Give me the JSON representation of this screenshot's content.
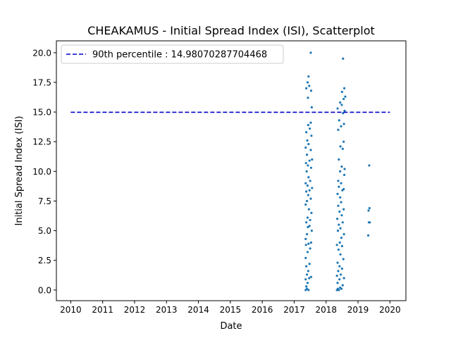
{
  "chart_data": {
    "type": "scatter",
    "title": "CHEAKAMUS - Initial Spread Index (ISI), Scatterplot",
    "xlabel": "Date",
    "ylabel": "Initial Spread Index (ISI)",
    "xlim": [
      2009.55,
      2020.5
    ],
    "ylim": [
      -0.9,
      21.0
    ],
    "x_ticks": [
      "2010",
      "2011",
      "2012",
      "2013",
      "2014",
      "2015",
      "2016",
      "2017",
      "2018",
      "2019",
      "2020"
    ],
    "y_ticks": [
      "0.0",
      "2.5",
      "5.0",
      "7.5",
      "10.0",
      "12.5",
      "15.0",
      "17.5",
      "20.0"
    ],
    "grid": false,
    "legend_position": "top-left",
    "colors": {
      "points": "#1f77b4",
      "reference_line": "#0000cc",
      "axes": "#000000"
    },
    "reference_line": {
      "label": "90th percentile : 14.98070287704468",
      "value": 14.98070287704468,
      "x_range": [
        2010,
        2020
      ]
    },
    "series": [
      {
        "points": [
          [
            2017.36,
            0.0
          ],
          [
            2017.4,
            0.1
          ],
          [
            2017.45,
            0.0
          ],
          [
            2017.38,
            0.3
          ],
          [
            2017.42,
            0.6
          ],
          [
            2017.36,
            0.9
          ],
          [
            2017.47,
            1.0
          ],
          [
            2017.4,
            1.3
          ],
          [
            2017.53,
            1.1
          ],
          [
            2017.44,
            1.6
          ],
          [
            2017.38,
            2.0
          ],
          [
            2017.48,
            2.2
          ],
          [
            2017.36,
            2.7
          ],
          [
            2017.42,
            3.2
          ],
          [
            2017.5,
            3.5
          ],
          [
            2017.37,
            3.8
          ],
          [
            2017.45,
            3.9
          ],
          [
            2017.53,
            4.0
          ],
          [
            2017.36,
            4.3
          ],
          [
            2017.4,
            4.7
          ],
          [
            2017.55,
            5.0
          ],
          [
            2017.43,
            5.3
          ],
          [
            2017.48,
            5.4
          ],
          [
            2017.38,
            5.7
          ],
          [
            2017.5,
            5.9
          ],
          [
            2017.42,
            6.1
          ],
          [
            2017.54,
            6.5
          ],
          [
            2017.46,
            6.8
          ],
          [
            2017.36,
            7.2
          ],
          [
            2017.4,
            7.5
          ],
          [
            2017.52,
            7.7
          ],
          [
            2017.44,
            8.0
          ],
          [
            2017.38,
            8.3
          ],
          [
            2017.48,
            8.4
          ],
          [
            2017.56,
            8.6
          ],
          [
            2017.42,
            8.8
          ],
          [
            2017.36,
            9.0
          ],
          [
            2017.5,
            9.2
          ],
          [
            2017.45,
            9.5
          ],
          [
            2017.39,
            10.0
          ],
          [
            2017.53,
            10.3
          ],
          [
            2017.43,
            10.5
          ],
          [
            2017.37,
            10.7
          ],
          [
            2017.48,
            10.9
          ],
          [
            2017.56,
            11.0
          ],
          [
            2017.4,
            11.4
          ],
          [
            2017.52,
            11.8
          ],
          [
            2017.36,
            12.0
          ],
          [
            2017.45,
            12.3
          ],
          [
            2017.41,
            12.6
          ],
          [
            2017.54,
            13.0
          ],
          [
            2017.38,
            13.3
          ],
          [
            2017.49,
            13.6
          ],
          [
            2017.44,
            13.9
          ],
          [
            2017.52,
            14.1
          ],
          [
            2017.55,
            15.4
          ],
          [
            2017.43,
            16.2
          ],
          [
            2017.38,
            17.0
          ],
          [
            2017.53,
            16.8
          ],
          [
            2017.47,
            17.2
          ],
          [
            2017.42,
            17.5
          ],
          [
            2017.45,
            18.0
          ],
          [
            2017.52,
            20.0
          ],
          [
            2018.34,
            0.0
          ],
          [
            2018.37,
            0.1
          ],
          [
            2018.4,
            0.0
          ],
          [
            2018.44,
            0.2
          ],
          [
            2018.48,
            0.1
          ],
          [
            2018.52,
            0.4
          ],
          [
            2018.36,
            0.6
          ],
          [
            2018.42,
            0.9
          ],
          [
            2018.56,
            1.0
          ],
          [
            2018.34,
            1.2
          ],
          [
            2018.46,
            1.3
          ],
          [
            2018.38,
            1.6
          ],
          [
            2018.5,
            1.8
          ],
          [
            2018.42,
            2.0
          ],
          [
            2018.36,
            2.3
          ],
          [
            2018.54,
            2.6
          ],
          [
            2018.45,
            3.0
          ],
          [
            2018.39,
            3.4
          ],
          [
            2018.5,
            3.7
          ],
          [
            2018.34,
            3.8
          ],
          [
            2018.43,
            4.0
          ],
          [
            2018.48,
            4.4
          ],
          [
            2018.56,
            4.7
          ],
          [
            2018.37,
            5.0
          ],
          [
            2018.45,
            5.2
          ],
          [
            2018.4,
            5.5
          ],
          [
            2018.52,
            5.7
          ],
          [
            2018.35,
            6.0
          ],
          [
            2018.49,
            6.3
          ],
          [
            2018.42,
            6.6
          ],
          [
            2018.55,
            6.8
          ],
          [
            2018.38,
            7.1
          ],
          [
            2018.47,
            7.4
          ],
          [
            2018.44,
            7.8
          ],
          [
            2018.36,
            8.1
          ],
          [
            2018.51,
            8.4
          ],
          [
            2018.4,
            8.7
          ],
          [
            2018.55,
            8.5
          ],
          [
            2018.47,
            9.0
          ],
          [
            2018.38,
            9.2
          ],
          [
            2018.57,
            9.7
          ],
          [
            2018.44,
            10.0
          ],
          [
            2018.58,
            10.2
          ],
          [
            2018.49,
            10.4
          ],
          [
            2018.4,
            11.0
          ],
          [
            2018.52,
            11.9
          ],
          [
            2018.45,
            12.1
          ],
          [
            2018.55,
            12.5
          ],
          [
            2018.38,
            13.5
          ],
          [
            2018.47,
            13.8
          ],
          [
            2018.56,
            14.0
          ],
          [
            2018.41,
            14.3
          ],
          [
            2018.53,
            14.9
          ],
          [
            2018.36,
            15.3
          ],
          [
            2018.49,
            15.6
          ],
          [
            2018.58,
            15.1
          ],
          [
            2018.44,
            15.8
          ],
          [
            2018.55,
            16.1
          ],
          [
            2018.6,
            16.3
          ],
          [
            2018.5,
            16.7
          ],
          [
            2018.57,
            17.0
          ],
          [
            2018.53,
            19.5
          ],
          [
            2019.32,
            4.6
          ],
          [
            2019.34,
            5.7
          ],
          [
            2019.37,
            5.7
          ],
          [
            2019.33,
            6.7
          ],
          [
            2019.36,
            6.9
          ],
          [
            2019.35,
            10.5
          ]
        ]
      }
    ]
  }
}
